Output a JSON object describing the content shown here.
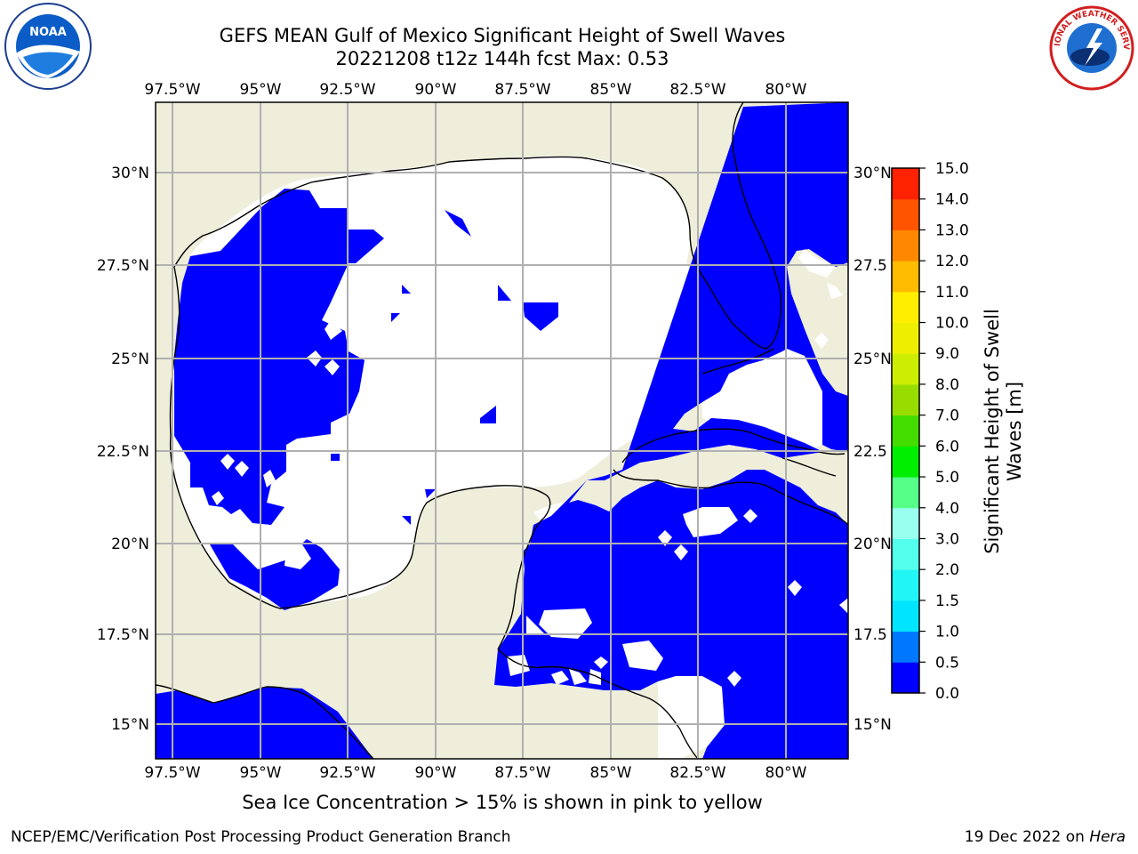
{
  "title": {
    "line1": "GEFS MEAN Gulf of Mexico Significant Height of Swell Waves",
    "line2": "20221208 t12z 144h fcst   Max: 0.53"
  },
  "map": {
    "lon_labels": [
      "97.5°W",
      "95°W",
      "92.5°W",
      "90°W",
      "87.5°W",
      "85°W",
      "82.5°W",
      "80°W"
    ],
    "lat_labels_left": [
      "30°N",
      "27.5°N",
      "25°N",
      "22.5°N",
      "20°N",
      "17.5°N",
      "15°N"
    ],
    "lat_labels_right": [
      "30°N",
      "27.5",
      "25°N",
      "22.5",
      "20°N",
      "17.5",
      "15°N"
    ],
    "land_color": "#efeedb",
    "swell_color": "#0000ff",
    "grid_color": "#b0b0b0"
  },
  "colorbar": {
    "label_line1": "Significant Height of Swell",
    "label_line2": "Waves [m]",
    "ticks": [
      "0.0",
      "0.5",
      "1.0",
      "1.5",
      "2.0",
      "3.0",
      "4.0",
      "5.0",
      "6.0",
      "7.0",
      "8.0",
      "9.0",
      "10.0",
      "11.0",
      "12.0",
      "13.0",
      "14.0",
      "15.0"
    ],
    "colors": [
      "#0000ff",
      "#0077ff",
      "#00e5ff",
      "#22f5f5",
      "#55ffee",
      "#99ffee",
      "#55ff88",
      "#00ee00",
      "#44dd00",
      "#99dd00",
      "#ccee00",
      "#eeee00",
      "#ffee00",
      "#ffbb00",
      "#ff8800",
      "#ff5500",
      "#ff2200",
      "#ff0000"
    ]
  },
  "note": "Sea Ice Concentration > 15% is shown in pink to yellow",
  "footer": {
    "left": "NCEP/EMC/Verification Post Processing Product Generation Branch",
    "right_prefix": "19 Dec 2022 on",
    "right_host": "Hera"
  },
  "logos": {
    "noaa_text": "NOAA",
    "nws_text": "NATIONAL WEATHER SERVICE"
  }
}
